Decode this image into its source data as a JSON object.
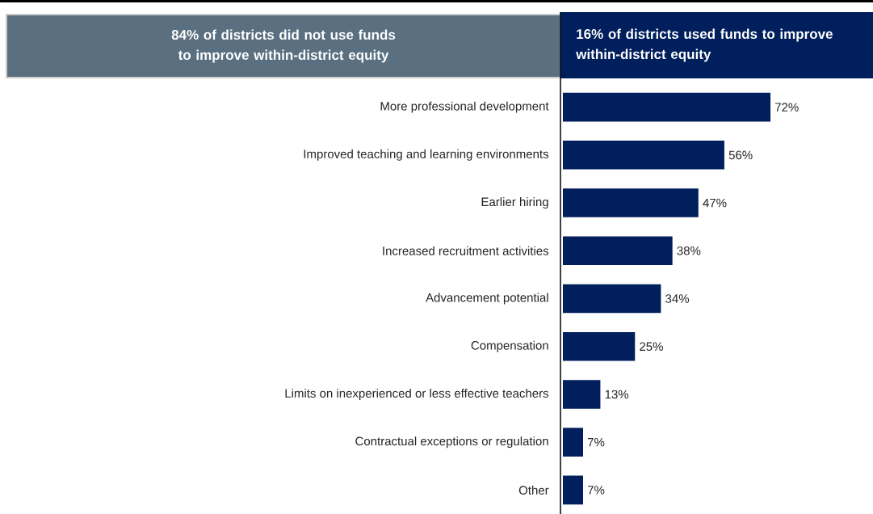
{
  "chart_data": {
    "type": "bar",
    "orientation": "horizontal",
    "title": "84% of districts did not use funds to improve within-district equity",
    "subtitle": "16% of districts used funds to improve within-district equity",
    "categories": [
      "More professional development",
      "Improved teaching and learning environments",
      "Earlier hiring",
      "Increased recruitment activities",
      "Advancement potential",
      "Compensation",
      "Limits on inexperienced or less effective teachers",
      "Contractual exceptions or regulation",
      "Other"
    ],
    "values": [
      72,
      56,
      47,
      38,
      34,
      25,
      13,
      7,
      7
    ],
    "value_labels": [
      "72%",
      "56%",
      "47%",
      "38%",
      "34%",
      "25%",
      "13%",
      "7%",
      "7%"
    ],
    "color": "#001f5c"
  }
}
